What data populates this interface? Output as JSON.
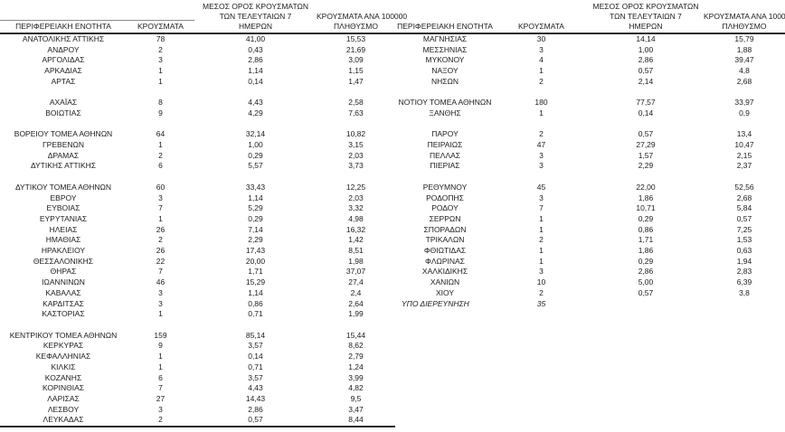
{
  "header": {
    "col1": "ΠΕΡΙΦΕΡΕΙΑΚΗ ΕΝΟΤΗΤΑ",
    "col2": "ΚΡΟΥΣΜΑΤΑ",
    "col3": "ΜΕΣΟΣ ΟΡΟΣ ΚΡΟΥΣΜΑΤΩΝ\nΤΩΝ ΤΕΛΕΥΤΑΙΩΝ 7\nΗΜΕΡΩΝ",
    "col4": "ΚΡΟΥΣΜΑΤΑ ΑΝΑ 100000\nΠΛΗΘΥΣΜΟ"
  },
  "left_table": {
    "rows": [
      [
        "ΑΝΑΤΟΛΙΚΗΣ ΑΤΤΙΚΗΣ",
        "78",
        "41,00",
        "15,53"
      ],
      [
        "ΑΝΔΡΟΥ",
        "2",
        "0,43",
        "21,69"
      ],
      [
        "ΑΡΓΟΛΙΔΑΣ",
        "3",
        "2,86",
        "3,09"
      ],
      [
        "ΑΡΚΑΔΙΑΣ",
        "1",
        "1,14",
        "1,15"
      ],
      [
        "ΑΡΤΑΣ",
        "1",
        "0,14",
        "1,47"
      ],
      [
        "",
        "",
        "",
        ""
      ],
      [
        "ΑΧΑΪΑΣ",
        "8",
        "4,43",
        "2,58"
      ],
      [
        "ΒΟΙΩΤΙΑΣ",
        "9",
        "4,29",
        "7,63"
      ],
      [
        "",
        "",
        "",
        ""
      ],
      [
        "ΒΟΡΕΙΟΥ ΤΟΜΕΑ ΑΘΗΝΩΝ",
        "64",
        "32,14",
        "10,82"
      ],
      [
        "ΓΡΕΒΕΝΩΝ",
        "1",
        "1,00",
        "3,15"
      ],
      [
        "ΔΡΑΜΑΣ",
        "2",
        "0,29",
        "2,03"
      ],
      [
        "ΔΥΤΙΚΗΣ ΑΤΤΙΚΗΣ",
        "6",
        "5,57",
        "3,73"
      ],
      [
        "",
        "",
        "",
        ""
      ],
      [
        "ΔΥΤΙΚΟΥ ΤΟΜΕΑ ΑΘΗΝΩΝ",
        "60",
        "33,43",
        "12,25"
      ],
      [
        "ΕΒΡΟΥ",
        "3",
        "1,14",
        "2,03"
      ],
      [
        "ΕΥΒΟΙΑΣ",
        "7",
        "5,29",
        "3,32"
      ],
      [
        "ΕΥΡΥΤΑΝΙΑΣ",
        "1",
        "0,29",
        "4,98"
      ],
      [
        "ΗΛΕΙΑΣ",
        "26",
        "7,14",
        "16,32"
      ],
      [
        "ΗΜΑΘΙΑΣ",
        "2",
        "2,29",
        "1,42"
      ],
      [
        "ΗΡΑΚΛΕΙΟΥ",
        "26",
        "17,43",
        "8,51"
      ],
      [
        "ΘΕΣΣΑΛΟΝΙΚΗΣ",
        "22",
        "20,00",
        "1,98"
      ],
      [
        "ΘΗΡΑΣ",
        "7",
        "1,71",
        "37,07"
      ],
      [
        "ΙΩΑΝΝΙΝΩΝ",
        "46",
        "15,29",
        "27,4"
      ],
      [
        "ΚΑΒΑΛΑΣ",
        "3",
        "1,14",
        "2,4"
      ],
      [
        "ΚΑΡΔΙΤΣΑΣ",
        "3",
        "0,86",
        "2,64"
      ],
      [
        "ΚΑΣΤΟΡΙΑΣ",
        "1",
        "0,71",
        "1,99"
      ],
      [
        "",
        "",
        "",
        ""
      ],
      [
        "ΚΕΝΤΡΙΚΟΥ ΤΟΜΕΑ ΑΘΗΝΩΝ",
        "159",
        "85,14",
        "15,44"
      ],
      [
        "ΚΕΡΚΥΡΑΣ",
        "9",
        "3,57",
        "8,62"
      ],
      [
        "ΚΕΦΑΛΛΗΝΙΑΣ",
        "1",
        "0,14",
        "2,79"
      ],
      [
        "ΚΙΛΚΙΣ",
        "1",
        "0,71",
        "1,24"
      ],
      [
        "ΚΟΖΑΝΗΣ",
        "6",
        "3,57",
        "3,99"
      ],
      [
        "ΚΟΡΙΝΘΙΑΣ",
        "7",
        "4,43",
        "4,82"
      ],
      [
        "ΛΑΡΙΣΑΣ",
        "27",
        "14,43",
        "9,5"
      ],
      [
        "ΛΕΣΒΟΥ",
        "3",
        "2,86",
        "3,47"
      ],
      [
        "ΛΕΥΚΑΔΑΣ",
        "2",
        "0,57",
        "8,44"
      ]
    ]
  },
  "right_table": {
    "rows": [
      [
        "ΜΑΓΝΗΣΙΑΣ",
        "30",
        "14,14",
        "15,79"
      ],
      [
        "ΜΕΣΣΗΝΙΑΣ",
        "3",
        "1,00",
        "1,88"
      ],
      [
        "ΜΥΚΟΝΟΥ",
        "4",
        "2,86",
        "39,47"
      ],
      [
        "ΝΑΞΟΥ",
        "1",
        "0,57",
        "4,8"
      ],
      [
        "ΝΗΣΩΝ",
        "2",
        "2,14",
        "2,68"
      ],
      [
        "",
        "",
        "",
        ""
      ],
      [
        "ΝΟΤΙΟΥ ΤΟΜΕΑ ΑΘΗΝΩΝ",
        "180",
        "77,57",
        "33,97"
      ],
      [
        "ΞΑΝΘΗΣ",
        "1",
        "0,14",
        "0,9"
      ],
      [
        "",
        "",
        "",
        ""
      ],
      [
        "ΠΑΡΟΥ",
        "2",
        "0,57",
        "13,4"
      ],
      [
        "ΠΕΙΡΑΙΩΣ",
        "47",
        "27,29",
        "10,47"
      ],
      [
        "ΠΕΛΛΑΣ",
        "3",
        "1,57",
        "2,15"
      ],
      [
        "ΠΙΕΡΙΑΣ",
        "3",
        "2,29",
        "2,37"
      ],
      [
        "",
        "",
        "",
        ""
      ],
      [
        "ΡΕΘΥΜΝΟΥ",
        "45",
        "22,00",
        "52,56"
      ],
      [
        "ΡΟΔΟΠΗΣ",
        "3",
        "1,86",
        "2,68"
      ],
      [
        "ΡΟΔΟΥ",
        "7",
        "10,71",
        "5,84"
      ],
      [
        "ΣΕΡΡΩΝ",
        "1",
        "0,29",
        "0,57"
      ],
      [
        "ΣΠΟΡΑΔΩΝ",
        "1",
        "0,86",
        "7,25"
      ],
      [
        "ΤΡΙΚΑΛΩΝ",
        "2",
        "1,71",
        "1,53"
      ],
      [
        "ΦΘΙΩΤΙΔΑΣ",
        "1",
        "1,86",
        "0,63"
      ],
      [
        "ΦΛΩΡΙΝΑΣ",
        "1",
        "0,29",
        "1,94"
      ],
      [
        "ΧΑΛΚΙΔΙΚΗΣ",
        "3",
        "2,86",
        "2,83"
      ],
      [
        "ΧΑΝΙΩΝ",
        "10",
        "5,00",
        "6,39"
      ],
      [
        "ΧΙΟΥ",
        "2",
        "0,57",
        "3,8"
      ],
      [
        "ΥΠΟ ΔΙΕΡΕΥΝΗΣΗ",
        "35",
        "",
        "",
        "italic"
      ]
    ]
  }
}
